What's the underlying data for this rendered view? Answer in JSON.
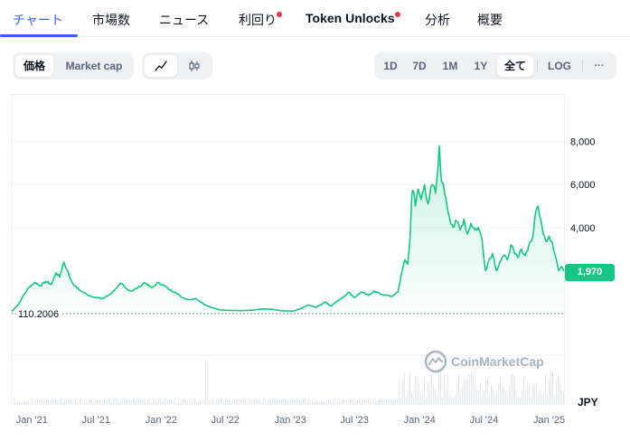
{
  "tabs": [
    {
      "label": "チャート"
    },
    {
      "label": "市場数"
    },
    {
      "label": "ニュース"
    },
    {
      "label": "利回り"
    },
    {
      "label": "Token Unlocks"
    },
    {
      "label": "分析"
    },
    {
      "label": "概要"
    }
  ],
  "controls": {
    "metric": [
      "価格",
      "Market cap"
    ],
    "selected_metric": "価格",
    "view_icons": [
      "line-chart-icon",
      "candlestick-icon"
    ],
    "ranges": [
      "1D",
      "7D",
      "1M",
      "1Y",
      "全て"
    ],
    "selected_range": "全て",
    "log_label": "LOG",
    "more_label": "···"
  },
  "colors": {
    "accent": "#3861fb",
    "line": "#16c784",
    "notification_dot": "#ea3943"
  },
  "chart_data": {
    "type": "area",
    "y_ticks": [
      "8,000",
      "6,000",
      "4,000"
    ],
    "y_tick_values": [
      8000,
      6000,
      4000
    ],
    "ylim": [
      0,
      10000
    ],
    "x_ticks": [
      "Jan '21",
      "Jul '21",
      "Jan '22",
      "Jul '22",
      "Jan '23",
      "Jul '23",
      "Jan '24",
      "Jul '24",
      "Jan '25"
    ],
    "x_tick_dates": [
      "2021-01-01",
      "2021-07-01",
      "2022-01-01",
      "2022-07-01",
      "2023-01-01",
      "2023-07-01",
      "2024-01-01",
      "2024-07-01",
      "2025-01-01"
    ],
    "current_price": "1,970",
    "min_label": "110.2006",
    "currency": "JPY",
    "watermark": "CoinMarketCap",
    "series": [
      {
        "points": [
          [
            "2020-11-05",
            110
          ],
          [
            "2020-11-25",
            450
          ],
          [
            "2020-12-10",
            900
          ],
          [
            "2020-12-25",
            1250
          ],
          [
            "2021-01-10",
            1450
          ],
          [
            "2021-01-25",
            1300
          ],
          [
            "2021-02-10",
            1500
          ],
          [
            "2021-02-25",
            1350
          ],
          [
            "2021-03-10",
            1900
          ],
          [
            "2021-03-20",
            1700
          ],
          [
            "2021-04-01",
            2400
          ],
          [
            "2021-04-10",
            2050
          ],
          [
            "2021-04-20",
            1600
          ],
          [
            "2021-05-01",
            1300
          ],
          [
            "2021-05-20",
            1050
          ],
          [
            "2021-06-10",
            850
          ],
          [
            "2021-07-01",
            750
          ],
          [
            "2021-07-20",
            700
          ],
          [
            "2021-08-10",
            900
          ],
          [
            "2021-08-25",
            1150
          ],
          [
            "2021-09-10",
            1400
          ],
          [
            "2021-09-25",
            1150
          ],
          [
            "2021-10-10",
            1050
          ],
          [
            "2021-11-01",
            1250
          ],
          [
            "2021-11-15",
            1450
          ],
          [
            "2021-12-05",
            1200
          ],
          [
            "2021-12-25",
            1450
          ],
          [
            "2022-01-10",
            1300
          ],
          [
            "2022-01-25",
            1100
          ],
          [
            "2022-02-10",
            1000
          ],
          [
            "2022-03-01",
            750
          ],
          [
            "2022-03-20",
            650
          ],
          [
            "2022-04-10",
            700
          ],
          [
            "2022-05-01",
            450
          ],
          [
            "2022-05-20",
            300
          ],
          [
            "2022-06-15",
            180
          ],
          [
            "2022-07-15",
            150
          ],
          [
            "2022-08-15",
            140
          ],
          [
            "2022-09-15",
            160
          ],
          [
            "2022-10-15",
            220
          ],
          [
            "2022-11-10",
            200
          ],
          [
            "2022-12-10",
            130
          ],
          [
            "2023-01-10",
            120
          ],
          [
            "2023-02-01",
            250
          ],
          [
            "2023-02-20",
            400
          ],
          [
            "2023-03-15",
            300
          ],
          [
            "2023-04-10",
            550
          ],
          [
            "2023-04-25",
            350
          ],
          [
            "2023-05-15",
            600
          ],
          [
            "2023-06-05",
            850
          ],
          [
            "2023-06-15",
            1000
          ],
          [
            "2023-07-01",
            750
          ],
          [
            "2023-07-20",
            1000
          ],
          [
            "2023-08-10",
            850
          ],
          [
            "2023-08-25",
            1050
          ],
          [
            "2023-09-15",
            900
          ],
          [
            "2023-10-15",
            800
          ],
          [
            "2023-11-01",
            1000
          ],
          [
            "2023-11-10",
            1800
          ],
          [
            "2023-11-20",
            2500
          ],
          [
            "2023-11-28",
            2300
          ],
          [
            "2023-12-05",
            3500
          ],
          [
            "2023-12-10",
            5500
          ],
          [
            "2023-12-15",
            5700
          ],
          [
            "2023-12-20",
            5000
          ],
          [
            "2023-12-28",
            5800
          ],
          [
            "2024-01-05",
            5300
          ],
          [
            "2024-01-15",
            6000
          ],
          [
            "2024-01-25",
            5100
          ],
          [
            "2024-02-05",
            6000
          ],
          [
            "2024-02-15",
            5600
          ],
          [
            "2024-02-22",
            6800
          ],
          [
            "2024-02-26",
            7800
          ],
          [
            "2024-03-01",
            6500
          ],
          [
            "2024-03-05",
            6100
          ],
          [
            "2024-03-15",
            5400
          ],
          [
            "2024-03-25",
            4500
          ],
          [
            "2024-04-05",
            4000
          ],
          [
            "2024-04-15",
            4300
          ],
          [
            "2024-04-25",
            3900
          ],
          [
            "2024-05-05",
            4400
          ],
          [
            "2024-05-15",
            3700
          ],
          [
            "2024-05-25",
            4200
          ],
          [
            "2024-06-05",
            3900
          ],
          [
            "2024-06-15",
            4000
          ],
          [
            "2024-06-25",
            3500
          ],
          [
            "2024-07-05",
            2000
          ],
          [
            "2024-07-15",
            2500
          ],
          [
            "2024-07-25",
            2800
          ],
          [
            "2024-08-05",
            2000
          ],
          [
            "2024-08-15",
            2400
          ],
          [
            "2024-08-25",
            2700
          ],
          [
            "2024-09-05",
            2500
          ],
          [
            "2024-09-15",
            3200
          ],
          [
            "2024-09-25",
            2800
          ],
          [
            "2024-10-05",
            2600
          ],
          [
            "2024-10-15",
            3000
          ],
          [
            "2024-10-25",
            2700
          ],
          [
            "2024-11-05",
            3200
          ],
          [
            "2024-11-15",
            3500
          ],
          [
            "2024-11-25",
            4800
          ],
          [
            "2024-12-01",
            5000
          ],
          [
            "2024-12-08",
            4400
          ],
          [
            "2024-12-15",
            3700
          ],
          [
            "2024-12-22",
            3400
          ],
          [
            "2025-01-01",
            3600
          ],
          [
            "2025-01-10",
            3300
          ],
          [
            "2025-01-20",
            2600
          ],
          [
            "2025-01-28",
            2000
          ],
          [
            "2025-02-05",
            2200
          ],
          [
            "2025-02-12",
            1970
          ]
        ]
      }
    ]
  }
}
